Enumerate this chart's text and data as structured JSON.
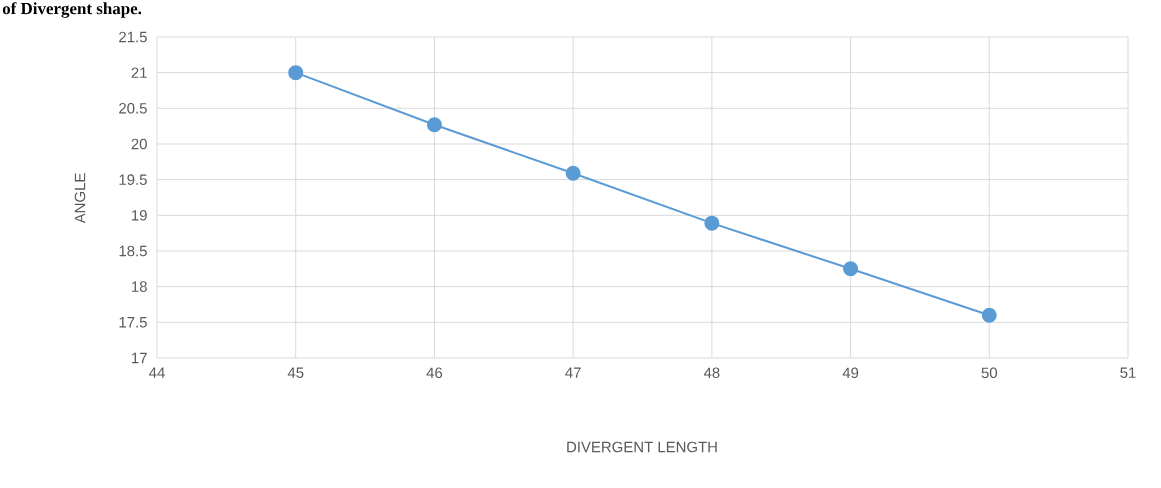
{
  "chart_data": {
    "type": "line",
    "title": "of Divergent shape.",
    "xlabel": "DIVERGENT LENGTH",
    "ylabel": "ANGLE",
    "x": [
      45,
      46,
      47,
      48,
      49,
      50
    ],
    "series": [
      {
        "color": "#5b9bd5",
        "values": [
          21,
          20.27,
          19.59,
          18.89,
          18.25,
          17.6
        ]
      }
    ],
    "xlim": [
      44,
      51
    ],
    "xticks": [
      44,
      45,
      46,
      47,
      48,
      49,
      50,
      51
    ],
    "ylim": [
      17,
      21.5
    ],
    "yticks": [
      17,
      17.5,
      18,
      18.5,
      19,
      19.5,
      20,
      20.5,
      21,
      21.5
    ],
    "grid": true,
    "marker": "circle",
    "line_style": "solid"
  }
}
